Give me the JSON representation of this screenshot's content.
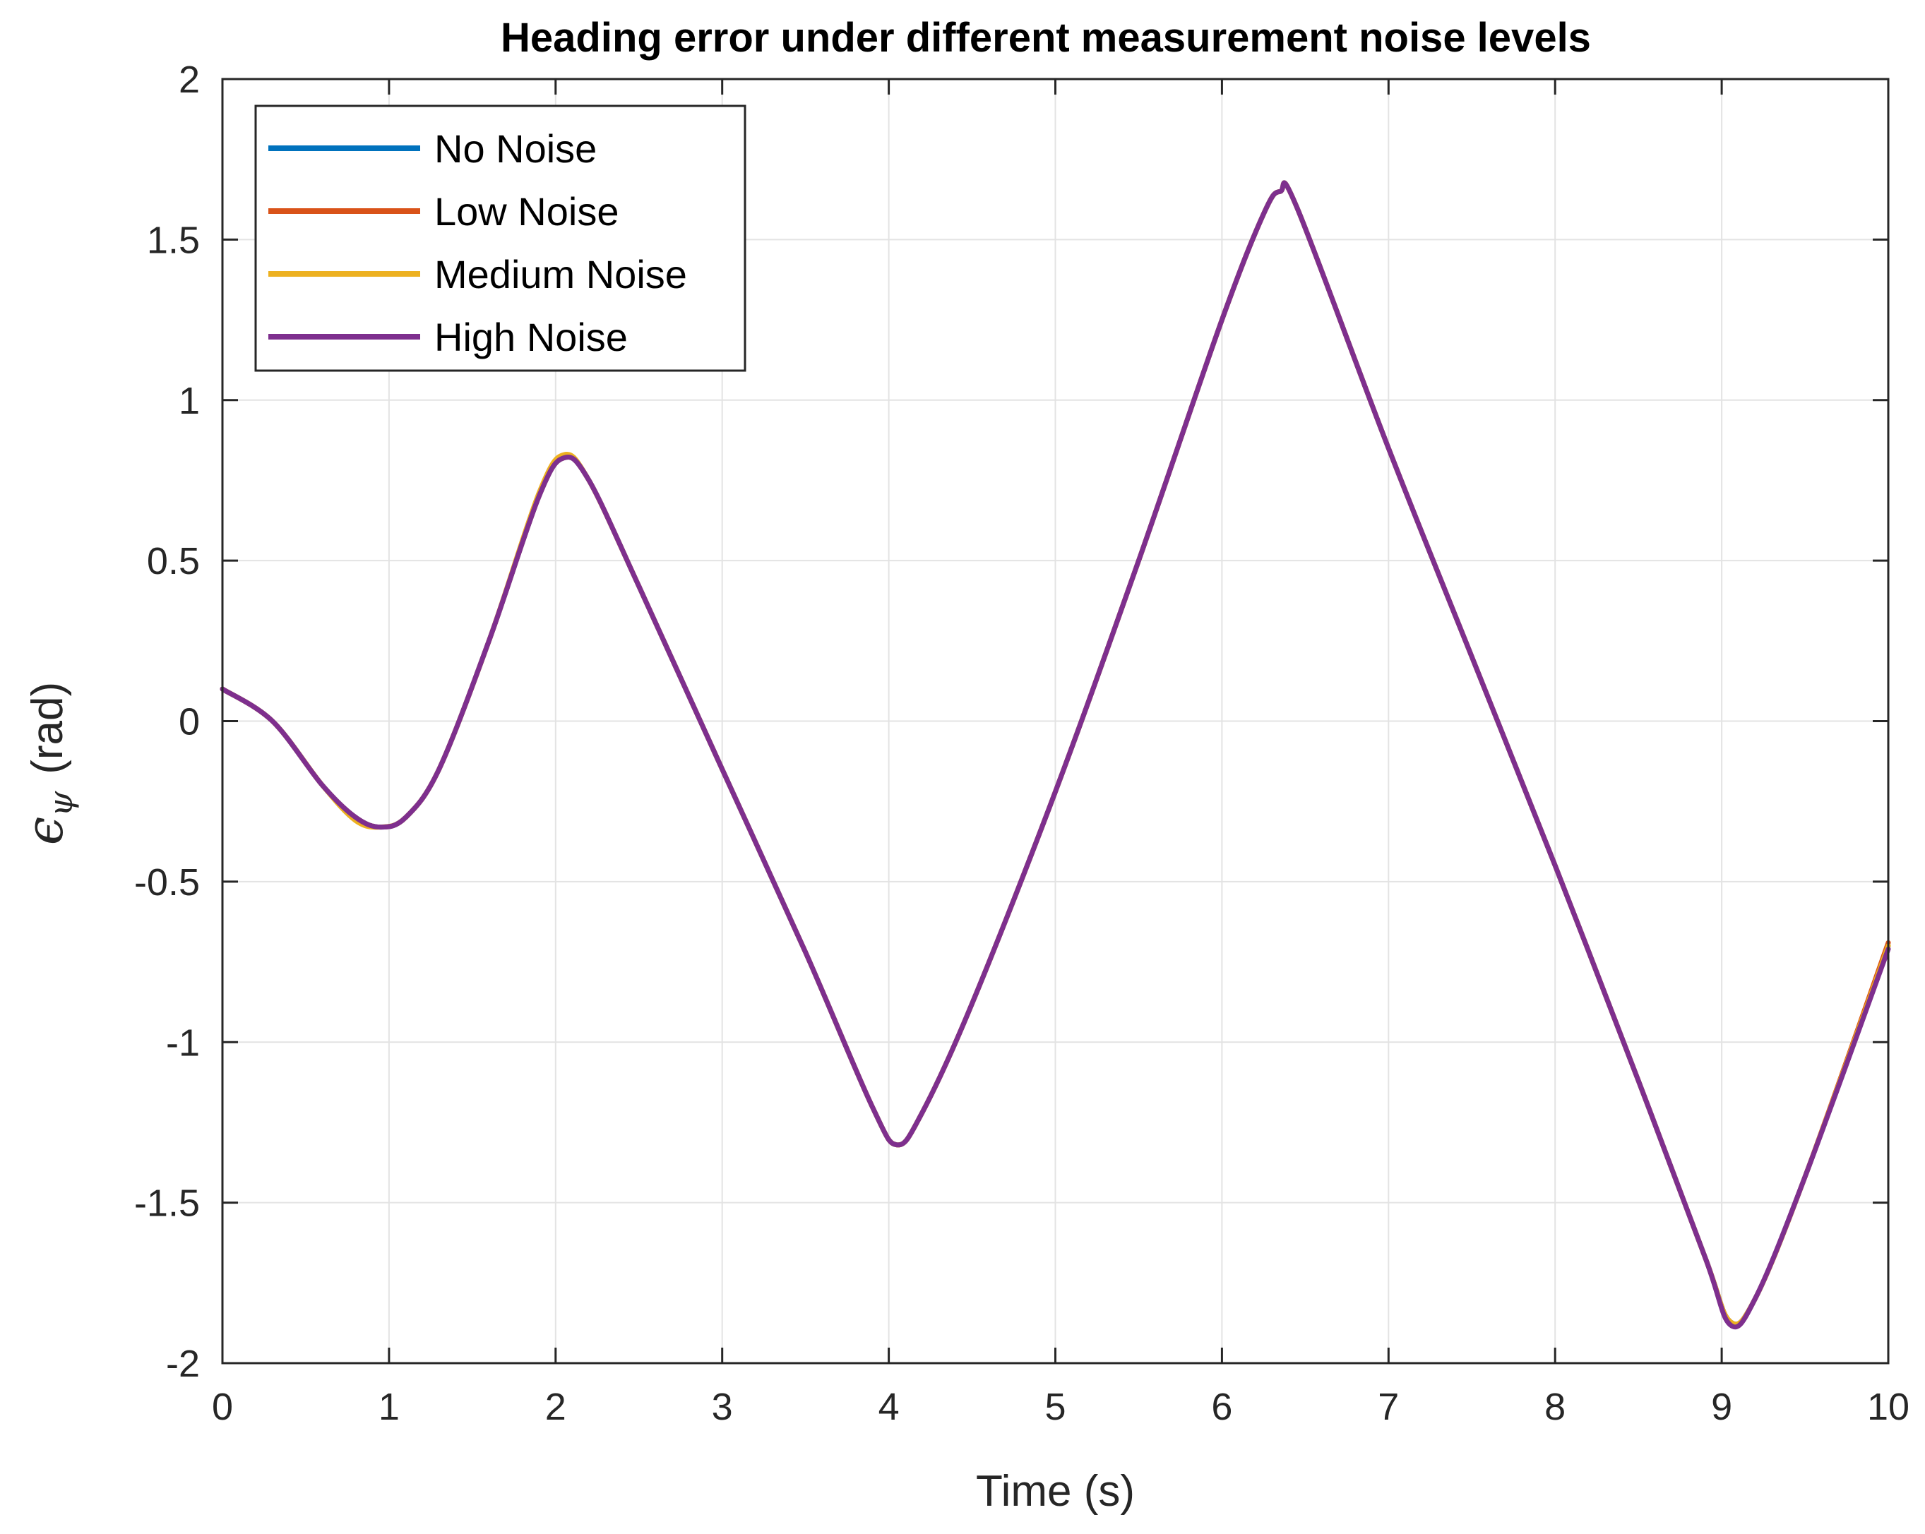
{
  "chart_data": {
    "type": "line",
    "title": "Heading error under different measurement noise levels",
    "xlabel": "Time (s)",
    "ylabel_symbol": "ϵ",
    "ylabel_subscript": "ψ",
    "ylabel_unit": "(rad)",
    "xlim": [
      0,
      10
    ],
    "ylim": [
      -2,
      2
    ],
    "xticks": [
      0,
      1,
      2,
      3,
      4,
      5,
      6,
      7,
      8,
      9,
      10
    ],
    "xtick_labels": [
      "0",
      "1",
      "2",
      "3",
      "4",
      "5",
      "6",
      "7",
      "8",
      "9",
      "10"
    ],
    "yticks": [
      2,
      1.5,
      1,
      0.5,
      0,
      -0.5,
      -1,
      -1.5,
      -2
    ],
    "ytick_labels": [
      "2",
      "1.5",
      "1",
      "0.5",
      "0",
      "-0.5",
      "-1",
      "-1.5",
      "-2"
    ],
    "grid": true,
    "legend_position": "top-left",
    "x": [
      0,
      0.3,
      0.6,
      0.8,
      0.95,
      1.1,
      1.3,
      1.6,
      1.9,
      2.05,
      2.2,
      2.5,
      3.0,
      3.5,
      3.9,
      4.05,
      4.2,
      4.5,
      5.0,
      5.5,
      6.0,
      6.25,
      6.35,
      6.45,
      7.0,
      7.5,
      8.0,
      8.5,
      8.9,
      9.05,
      9.2,
      9.5,
      10.0
    ],
    "series": [
      {
        "name": "No Noise",
        "color": "#0072BD",
        "values": [
          0.1,
          0.0,
          -0.2,
          -0.3,
          -0.33,
          -0.3,
          -0.15,
          0.25,
          0.7,
          0.82,
          0.75,
          0.42,
          -0.15,
          -0.72,
          -1.2,
          -1.32,
          -1.22,
          -0.88,
          -0.22,
          0.5,
          1.25,
          1.58,
          1.65,
          1.6,
          0.85,
          0.2,
          -0.45,
          -1.12,
          -1.67,
          -1.87,
          -1.8,
          -1.42,
          -0.7
        ]
      },
      {
        "name": "Low Noise",
        "color": "#D95319",
        "values": [
          0.1,
          0.0,
          -0.2,
          -0.3,
          -0.33,
          -0.3,
          -0.15,
          0.25,
          0.7,
          0.82,
          0.75,
          0.42,
          -0.15,
          -0.72,
          -1.2,
          -1.32,
          -1.22,
          -0.88,
          -0.22,
          0.5,
          1.25,
          1.58,
          1.65,
          1.6,
          0.85,
          0.2,
          -0.45,
          -1.12,
          -1.67,
          -1.87,
          -1.8,
          -1.42,
          -0.69
        ]
      },
      {
        "name": "Medium Noise",
        "color": "#EDB120",
        "values": [
          0.1,
          0.0,
          -0.2,
          -0.31,
          -0.33,
          -0.3,
          -0.15,
          0.25,
          0.71,
          0.83,
          0.75,
          0.42,
          -0.15,
          -0.72,
          -1.2,
          -1.32,
          -1.22,
          -0.88,
          -0.22,
          0.5,
          1.25,
          1.58,
          1.65,
          1.6,
          0.85,
          0.2,
          -0.45,
          -1.12,
          -1.67,
          -1.87,
          -1.8,
          -1.42,
          -0.7
        ]
      },
      {
        "name": "High Noise",
        "color": "#7E2F8E",
        "values": [
          0.1,
          0.0,
          -0.2,
          -0.3,
          -0.33,
          -0.3,
          -0.15,
          0.25,
          0.7,
          0.82,
          0.75,
          0.42,
          -0.15,
          -0.72,
          -1.2,
          -1.32,
          -1.22,
          -0.88,
          -0.22,
          0.5,
          1.25,
          1.58,
          1.65,
          1.6,
          0.85,
          0.2,
          -0.45,
          -1.12,
          -1.67,
          -1.88,
          -1.8,
          -1.42,
          -0.71
        ]
      }
    ]
  }
}
